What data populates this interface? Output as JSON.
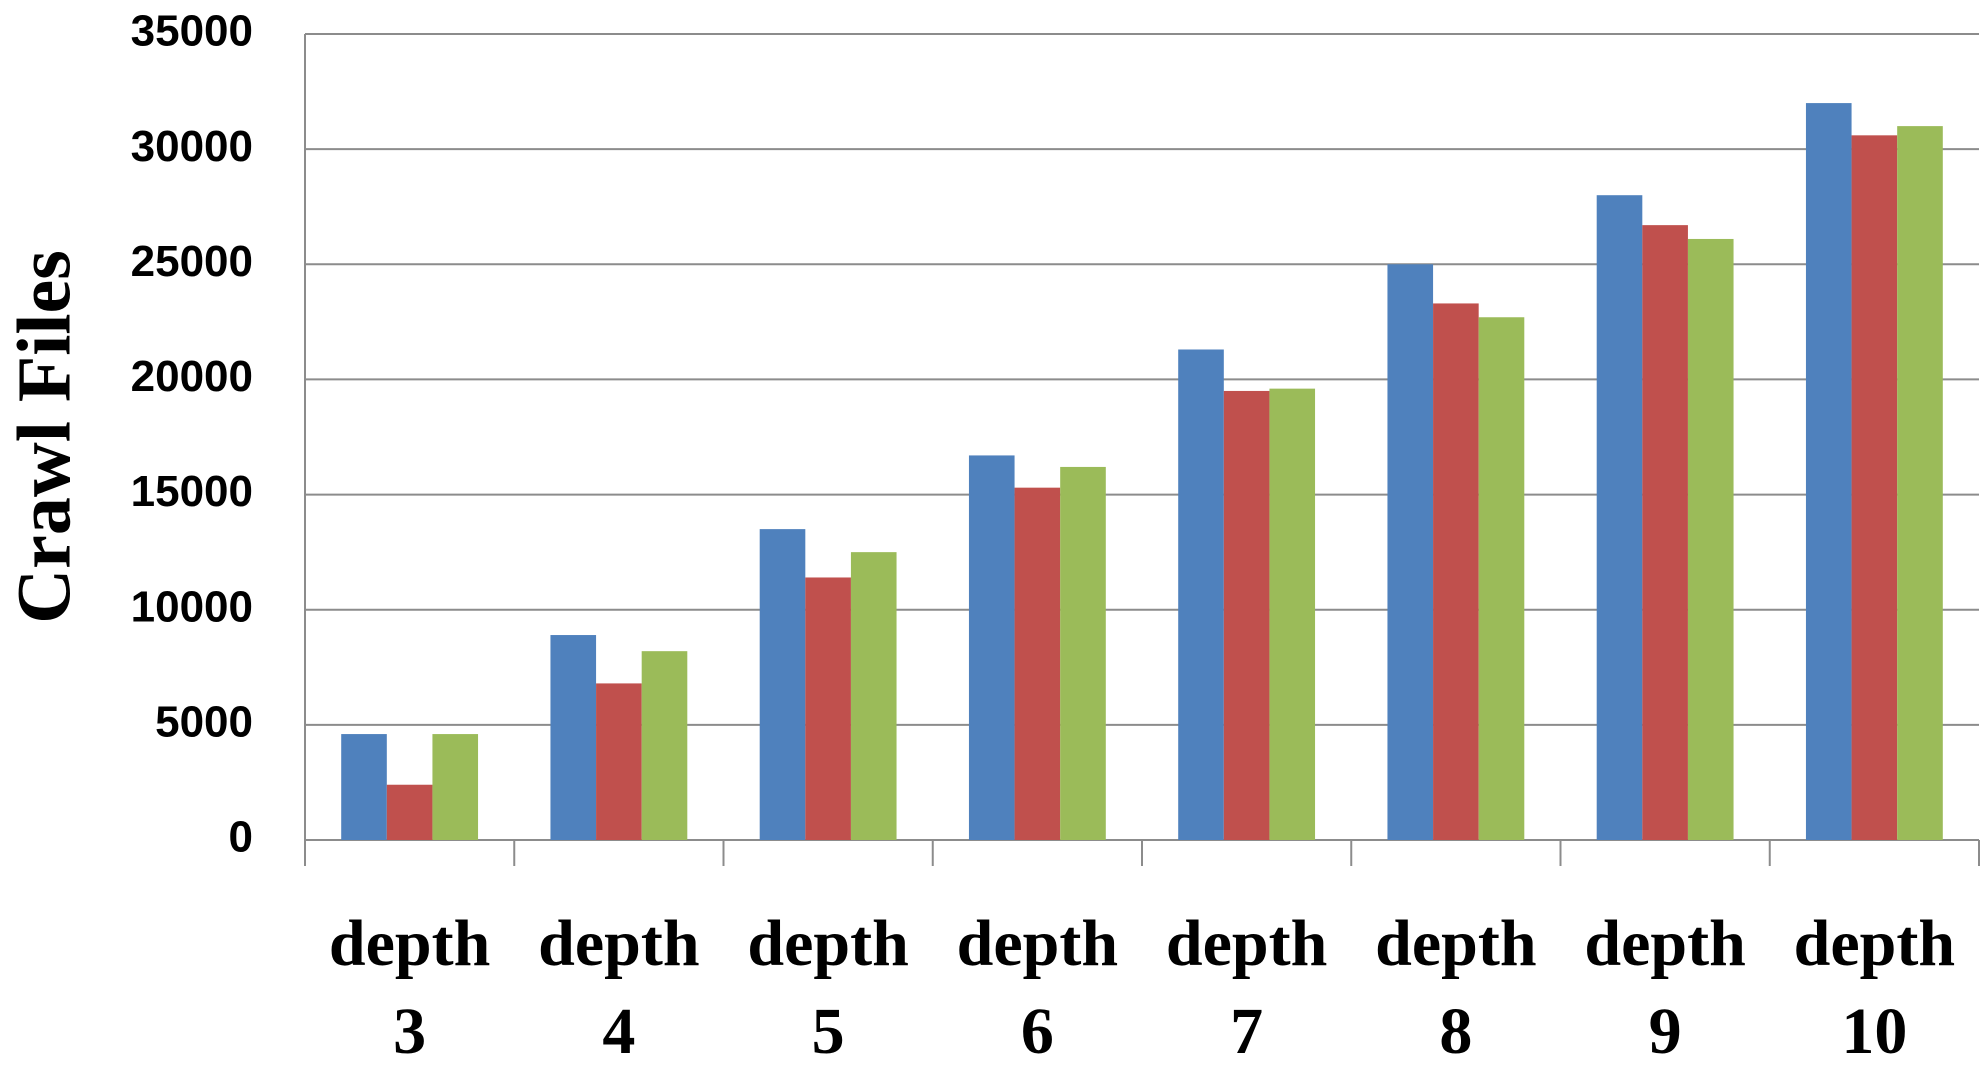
{
  "chart_data": {
    "type": "bar",
    "y_label": "Crawl Files",
    "categories": [
      "depth 3",
      "depth 4",
      "depth 5",
      "depth 6",
      "depth 7",
      "depth 8",
      "depth 9",
      "depth 10"
    ],
    "series": [
      {
        "color": "#4f81bd",
        "values": [
          4600,
          8900,
          13500,
          16700,
          21300,
          25000,
          28000,
          32000
        ]
      },
      {
        "color": "#c0504d",
        "values": [
          2400,
          6800,
          11400,
          15300,
          19500,
          23300,
          26700,
          30600
        ]
      },
      {
        "color": "#9bbb59",
        "values": [
          4600,
          8200,
          12500,
          16200,
          19600,
          22700,
          26100,
          31000
        ]
      }
    ],
    "ylim": [
      0,
      35000
    ],
    "yticks": [
      0,
      5000,
      10000,
      15000,
      20000,
      25000,
      30000,
      35000
    ],
    "grid": true
  }
}
